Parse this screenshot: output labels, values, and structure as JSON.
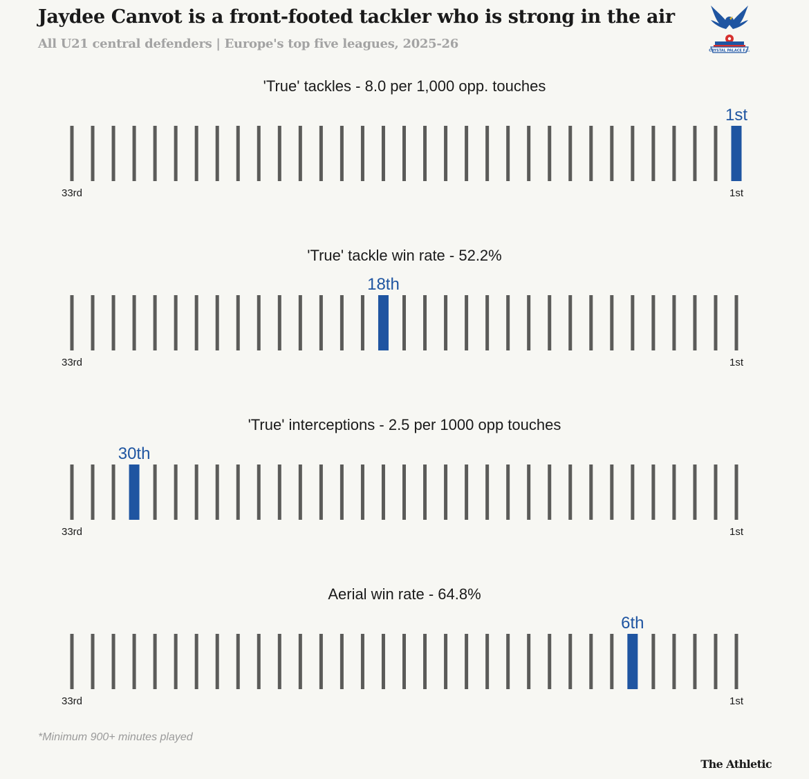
{
  "header": {
    "title": "Jaydee Canvot is a front-footed tackler who is strong in the air",
    "subtitle": "All U21 central defenders | Europe's top five leagues, 2025-26"
  },
  "crest": {
    "icon": "crystal-palace-crest-icon",
    "text": "CRYSTAL PALACE F.C."
  },
  "colors": {
    "background": "#f7f7f3",
    "neutral_bar": "#5b5b59",
    "highlight": "#1f55a1",
    "label": "#1a1a1a"
  },
  "chart_data": [
    {
      "type": "bar",
      "title": "'True' tackles - 8.0 per 1,000 opp. touches",
      "total": 33,
      "rank": 1,
      "rank_label": "1st",
      "left_label": "33rd",
      "right_label": "1st"
    },
    {
      "type": "bar",
      "title": "'True' tackle win rate - 52.2%",
      "total": 33,
      "rank": 18,
      "rank_label": "18th",
      "left_label": "33rd",
      "right_label": "1st"
    },
    {
      "type": "bar",
      "title": "'True' interceptions - 2.5 per 1000 opp touches",
      "total": 33,
      "rank": 30,
      "rank_label": "30th",
      "left_label": "33rd",
      "right_label": "1st"
    },
    {
      "type": "bar",
      "title": "Aerial win rate - 64.8%",
      "total": 33,
      "rank": 6,
      "rank_label": "6th",
      "left_label": "33rd",
      "right_label": "1st"
    }
  ],
  "footer": {
    "note": "*Minimum 900+ minutes played",
    "brand": "The Athletic"
  }
}
